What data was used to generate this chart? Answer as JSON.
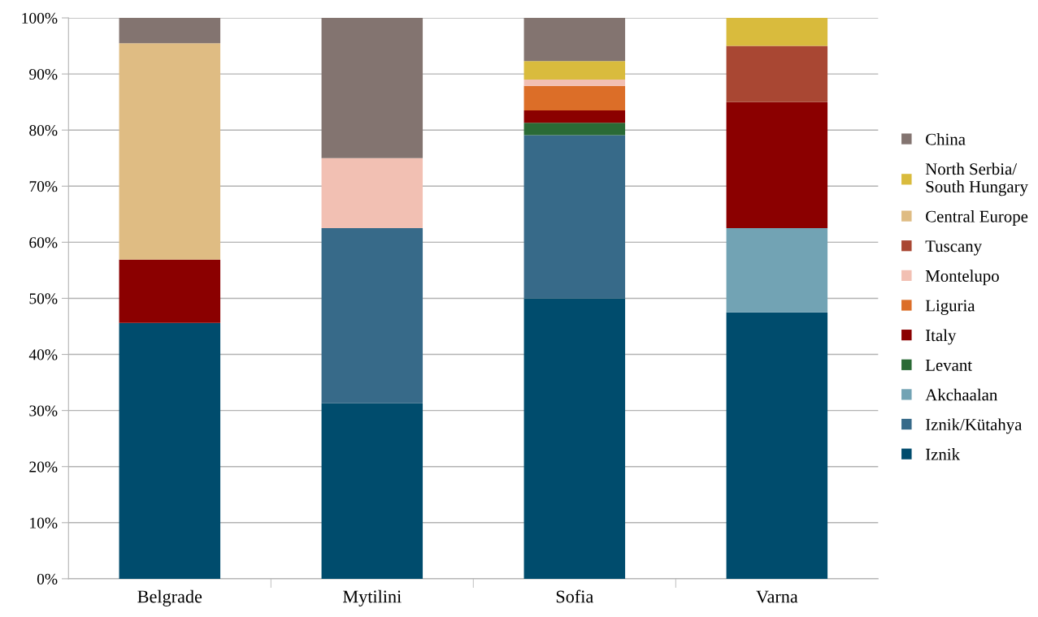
{
  "chart_data": {
    "type": "bar",
    "stacked": true,
    "categories": [
      "Belgrade",
      "Mytilini",
      "Sofia",
      "Varna"
    ],
    "series": [
      {
        "name": "Iznik",
        "color": "#004c6d",
        "values": [
          45.6,
          31.3,
          50,
          47.5
        ]
      },
      {
        "name": "Iznik/Kütahya",
        "color": "#376a89",
        "values": [
          null,
          31.2,
          29.1,
          null
        ]
      },
      {
        "name": "Akchaalan",
        "color": "#72a3b4",
        "values": [
          null,
          null,
          null,
          15
        ]
      },
      {
        "name": "Levant",
        "color": "#2a6a35",
        "values": [
          null,
          null,
          2.2,
          null
        ]
      },
      {
        "name": "Italy",
        "color": "#8b0000",
        "values": [
          11.3,
          null,
          2.2,
          22.5
        ]
      },
      {
        "name": "Liguria",
        "color": "#dc6e28",
        "values": [
          null,
          null,
          4.4,
          null
        ]
      },
      {
        "name": "Montelupo",
        "color": "#f2c0b3",
        "values": [
          null,
          12.5,
          1.1,
          null
        ]
      },
      {
        "name": "Tuscany",
        "color": "#a94733",
        "values": [
          null,
          null,
          null,
          10
        ]
      },
      {
        "name": "Central Europe",
        "color": "#dfbc83",
        "values": [
          38.6,
          null,
          null,
          null
        ]
      },
      {
        "name": "North Serbia/\nSouth Hungary",
        "color": "#d9bb3d",
        "values": [
          null,
          null,
          3.3,
          5
        ]
      },
      {
        "name": "China",
        "color": "#837470",
        "values": [
          4.5,
          25,
          7.7,
          null
        ]
      }
    ],
    "ylim": [
      0,
      100
    ],
    "yticks": [
      {
        "value": 0,
        "label": "0%"
      },
      {
        "value": 10,
        "label": "10%"
      },
      {
        "value": 20,
        "label": "20%"
      },
      {
        "value": 30,
        "label": "30%"
      },
      {
        "value": 40,
        "label": "40%"
      },
      {
        "value": 50,
        "label": "50%"
      },
      {
        "value": 60,
        "label": "60%"
      },
      {
        "value": 70,
        "label": "70%"
      },
      {
        "value": 80,
        "label": "80%"
      },
      {
        "value": 90,
        "label": "90%"
      },
      {
        "value": 100,
        "label": "100%"
      }
    ],
    "grid": "y",
    "legend": "right"
  }
}
